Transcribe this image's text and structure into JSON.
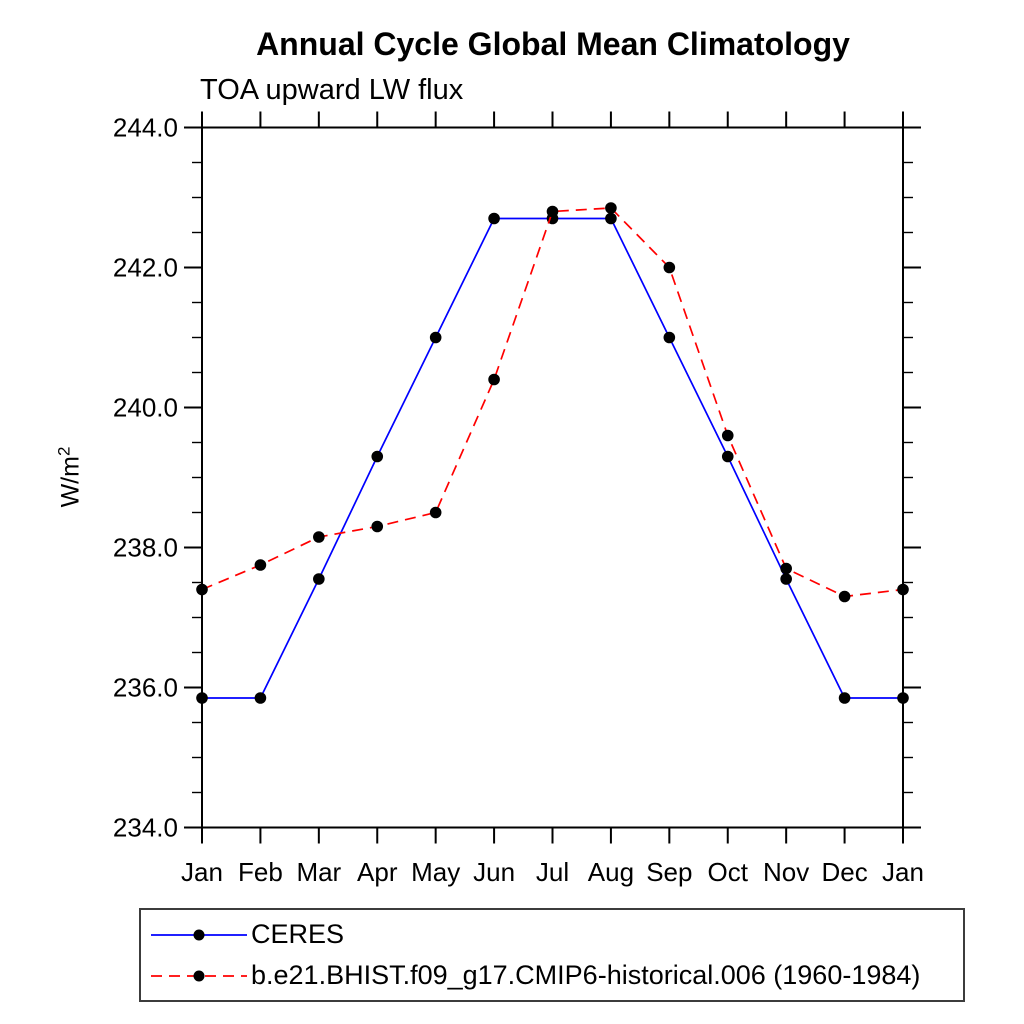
{
  "chart_data": {
    "type": "line",
    "title": "Annual Cycle Global Mean Climatology",
    "subtitle": "TOA upward LW flux",
    "ylabel": "W/m²",
    "ylabel_base": "W/m",
    "ylabel_exp": "2",
    "categories": [
      "Jan",
      "Feb",
      "Mar",
      "Apr",
      "May",
      "Jun",
      "Jul",
      "Aug",
      "Sep",
      "Oct",
      "Nov",
      "Dec",
      "Jan"
    ],
    "ylim": [
      234.0,
      244.0
    ],
    "ytick_major": [
      234.0,
      236.0,
      238.0,
      240.0,
      242.0,
      244.0
    ],
    "ytick_labels": [
      "234.0",
      "236.0",
      "238.0",
      "240.0",
      "242.0",
      "244.0"
    ],
    "ytick_minor_step": 0.5,
    "grid": false,
    "legend_position": "bottom-left",
    "axis_color": "#000000",
    "text_color": "#000000",
    "series": [
      {
        "name": "CERES",
        "color": "#0000ff",
        "line_style": "solid",
        "marker": "filled-circle",
        "marker_color": "#000000",
        "values": [
          235.85,
          235.85,
          237.55,
          239.3,
          241.0,
          242.7,
          242.7,
          242.7,
          241.0,
          239.3,
          237.55,
          235.85,
          235.85
        ]
      },
      {
        "name": "b.e21.BHIST.f09_g17.CMIP6-historical.006 (1960-1984)",
        "color": "#ff0000",
        "line_style": "dashed",
        "marker": "filled-circle",
        "marker_color": "#000000",
        "values": [
          237.4,
          237.75,
          238.15,
          238.3,
          238.5,
          240.4,
          242.8,
          242.85,
          242.0,
          239.6,
          237.7,
          237.3,
          237.4
        ]
      }
    ]
  }
}
